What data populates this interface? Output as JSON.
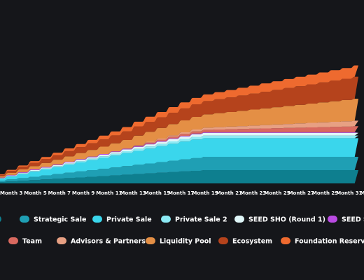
{
  "chart_data": {
    "type": "area",
    "stacked": true,
    "title": "",
    "xlabel": "",
    "ylabel": "",
    "background": "#15161a",
    "grid": false,
    "legend_position": "bottom",
    "x_labels": [
      "Month 3",
      "Month 5",
      "Month 7",
      "Month 9",
      "Month 11",
      "Month 13",
      "Month 15",
      "Month 17",
      "Month 19",
      "Month 21",
      "Month 23",
      "Month 25",
      "Month 27",
      "Month 29",
      "Month 31",
      "M"
    ],
    "x": [
      1,
      2,
      3,
      4,
      5,
      6,
      7,
      8,
      9,
      10,
      11,
      12,
      13,
      14,
      15,
      16,
      17,
      18,
      19,
      20,
      21,
      22,
      23,
      24,
      25,
      26,
      27,
      28,
      29,
      30,
      31,
      32
    ],
    "ylim": [
      0,
      100
    ],
    "series": [
      {
        "name": "",
        "color": "#0e7f8f",
        "values": [
          1,
          1.5,
          2,
          2.5,
          3,
          3.5,
          4,
          4.5,
          5,
          5.5,
          6,
          6.5,
          7,
          7.5,
          8,
          8.5,
          9,
          9.5,
          10,
          10,
          10,
          10,
          10,
          10,
          10,
          10,
          10,
          10,
          10,
          10,
          10,
          10
        ]
      },
      {
        "name": "Strategic Sale",
        "color": "#1f9fb4",
        "values": [
          1,
          1.5,
          2,
          2.5,
          3,
          3.5,
          4,
          4.5,
          5,
          5.5,
          6,
          6.5,
          7,
          7.5,
          8,
          8.5,
          9,
          9.5,
          10,
          10,
          10,
          10,
          10,
          10,
          10,
          10,
          10,
          10,
          10,
          10,
          10,
          10
        ]
      },
      {
        "name": "Private Sale",
        "color": "#3ad6ec",
        "values": [
          1.5,
          2.2,
          3,
          3.8,
          4.5,
          5.2,
          6,
          6.8,
          7.5,
          8.2,
          9,
          9.8,
          10.5,
          11.2,
          12,
          12.8,
          13.5,
          14,
          14,
          14,
          14,
          14,
          14,
          14,
          14,
          14,
          14,
          14,
          14,
          14,
          14,
          14
        ]
      },
      {
        "name": "Private Sale 2",
        "color": "#8ceaf4",
        "values": [
          0.3,
          0.4,
          0.5,
          0.6,
          0.7,
          0.8,
          0.9,
          1,
          1.1,
          1.2,
          1.3,
          1.4,
          1.5,
          1.6,
          1.7,
          1.8,
          1.9,
          2,
          2,
          2,
          2,
          2,
          2,
          2,
          2,
          2,
          2,
          2,
          2,
          2,
          2,
          2
        ]
      },
      {
        "name": "SEED SHO (Round 1)",
        "color": "#dff6f8",
        "values": [
          0.3,
          0.4,
          0.5,
          0.6,
          0.7,
          0.8,
          0.9,
          1,
          1.1,
          1.2,
          1.3,
          1.4,
          1.5,
          1.6,
          1.7,
          1.8,
          1.9,
          2,
          2,
          2,
          2,
          2,
          2,
          2,
          2,
          2,
          2,
          2,
          2,
          2,
          2,
          2
        ]
      },
      {
        "name": "SEED S",
        "color": "#b94ae2",
        "values": [
          0.3,
          0.4,
          0.5,
          0.5,
          0.5,
          0.5,
          0.5,
          0.5,
          0.5,
          0.5,
          0.5,
          0.5,
          0.5,
          0.5,
          0.5,
          0.5,
          0.5,
          0.5,
          0.5,
          0.5,
          0.5,
          0.5,
          0.5,
          0.5,
          0.5,
          0.5,
          0.5,
          0.5,
          0.5,
          0.5,
          0.5,
          0.5
        ]
      },
      {
        "name": "Team",
        "color": "#d9695f",
        "values": [
          0,
          0,
          0,
          0,
          0,
          0,
          0,
          0,
          0,
          0,
          0,
          0,
          0.5,
          0.8,
          1,
          1.2,
          1.4,
          1.6,
          1.8,
          2,
          2.2,
          2.4,
          2.6,
          2.8,
          3,
          3.2,
          3.4,
          3.6,
          3.8,
          4,
          4.2,
          4.5
        ]
      },
      {
        "name": "Advisors & Partners",
        "color": "#e7a083",
        "values": [
          0,
          0,
          0,
          0,
          0,
          0,
          0,
          0,
          0,
          0,
          0,
          0,
          0.4,
          0.6,
          0.8,
          1,
          1.2,
          1.4,
          1.6,
          1.8,
          2,
          2.2,
          2.4,
          2.6,
          2.8,
          3,
          3.2,
          3.4,
          3.6,
          3.8,
          4,
          4.2
        ]
      },
      {
        "name": "Liquidity Pool",
        "color": "#e48f45",
        "values": [
          1,
          1.5,
          2,
          2.5,
          3,
          3.5,
          4,
          4.5,
          5,
          5.5,
          6,
          6.5,
          7,
          7.5,
          8,
          8.5,
          9,
          9.5,
          10,
          10.5,
          11,
          11.5,
          12,
          12.5,
          13,
          13.5,
          14,
          14.5,
          15,
          15.5,
          16,
          16.5
        ]
      },
      {
        "name": "Ecosystem",
        "color": "#b5431c",
        "values": [
          1,
          1.5,
          2,
          2.5,
          3,
          3.5,
          4,
          4.5,
          5,
          5.5,
          6,
          6.5,
          7,
          7.5,
          8,
          8.5,
          9,
          9.5,
          10,
          10.5,
          11,
          11.5,
          12,
          12.5,
          13,
          13.5,
          14,
          14.5,
          15,
          15.5,
          16,
          16.5
        ]
      },
      {
        "name": "Foundation Reserve",
        "color": "#ee6a2f",
        "values": [
          0.5,
          0.8,
          1,
          1.3,
          1.5,
          1.8,
          2,
          2.3,
          2.5,
          2.8,
          3,
          3.3,
          3.5,
          3.8,
          4,
          4.3,
          4.5,
          4.8,
          5,
          5.3,
          5.5,
          5.8,
          6,
          6.3,
          6.5,
          6.8,
          7,
          7.3,
          7.5,
          7.8,
          8,
          8.5
        ]
      }
    ]
  }
}
